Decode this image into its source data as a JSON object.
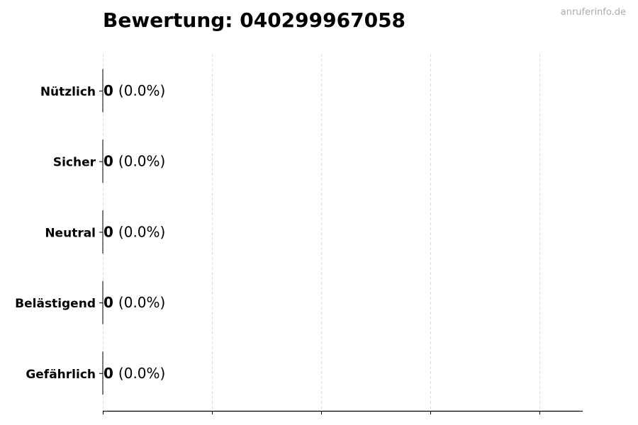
{
  "watermark": "anruferinfo.de",
  "chart_data": {
    "type": "bar",
    "orientation": "horizontal",
    "title": "Bewertung: 040299967058",
    "categories": [
      "Nützlich",
      "Sicher",
      "Neutral",
      "Belästigend",
      "Gefährlich"
    ],
    "values": [
      0,
      0,
      0,
      0,
      0
    ],
    "labels": [
      {
        "count": "0",
        "percent": "(0.0%)"
      },
      {
        "count": "0",
        "percent": "(0.0%)"
      },
      {
        "count": "0",
        "percent": "(0.0%)"
      },
      {
        "count": "0",
        "percent": "(0.0%)"
      },
      {
        "count": "0",
        "percent": "(0.0%)"
      }
    ],
    "xlabel": "",
    "ylabel": "",
    "x_tick_labels_shown": false,
    "grid": "vertical dashed",
    "colors": {
      "grid": "#dddddd",
      "axis": "#000000",
      "bar_edge": "#000000"
    }
  }
}
